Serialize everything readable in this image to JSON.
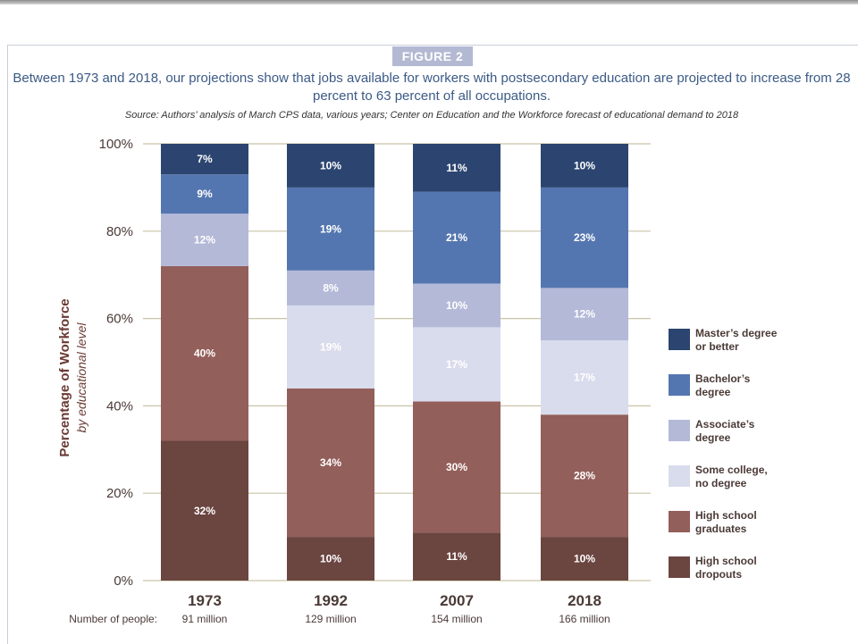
{
  "figure_label": "FIGURE 2",
  "headline": "Between 1973 and 2018, our projections show that jobs available for workers with postsecondary education are projected to increase from 28 percent to 63 percent of all occupations.",
  "source": "Source: Authors’ analysis of March CPS data, various years; Center on Education and the Workforce forecast of educational demand to 2018",
  "people_label": "Number of people:",
  "chart_data": {
    "type": "bar",
    "stacked": true,
    "ylabel": "Percentage of Workforce",
    "ylabel_sub": "by educational level",
    "ylim": [
      0,
      100
    ],
    "yticks": [
      0,
      20,
      40,
      60,
      80,
      100
    ],
    "ytick_labels": [
      "0%",
      "20%",
      "40%",
      "60%",
      "80%",
      "100%"
    ],
    "grid": true,
    "legend_position": "right",
    "categories": [
      "1973",
      "1992",
      "2007",
      "2018"
    ],
    "people": [
      "91 million",
      "129 million",
      "154 million",
      "166 million"
    ],
    "series": [
      {
        "name": "High school dropouts",
        "color": "#6b4540",
        "values": [
          32,
          10,
          11,
          10
        ]
      },
      {
        "name": "High school graduates",
        "color": "#935f5a",
        "values": [
          40,
          34,
          30,
          28
        ]
      },
      {
        "name": "Some college, no degree",
        "color": "#d9dcec",
        "values": [
          0,
          19,
          17,
          17
        ]
      },
      {
        "name": "Associate’s degree",
        "color": "#b4b9d8",
        "values": [
          12,
          8,
          10,
          12
        ]
      },
      {
        "name": "Bachelor’s degree",
        "color": "#5476b0",
        "values": [
          9,
          19,
          21,
          23
        ]
      },
      {
        "name": "Master’s degree or better",
        "color": "#2c4570",
        "values": [
          7,
          10,
          11,
          10
        ]
      }
    ],
    "legend": [
      {
        "label": "Master’s degree\nor better",
        "color": "#2c4570"
      },
      {
        "label": "Bachelor’s\ndegree",
        "color": "#5476b0"
      },
      {
        "label": "Associate’s\ndegree",
        "color": "#b4b9d8"
      },
      {
        "label": "Some college,\nno degree",
        "color": "#d9dcec"
      },
      {
        "label": "High school\ngraduates",
        "color": "#935f5a"
      },
      {
        "label": "High school\ndropouts",
        "color": "#6b4540"
      }
    ]
  }
}
